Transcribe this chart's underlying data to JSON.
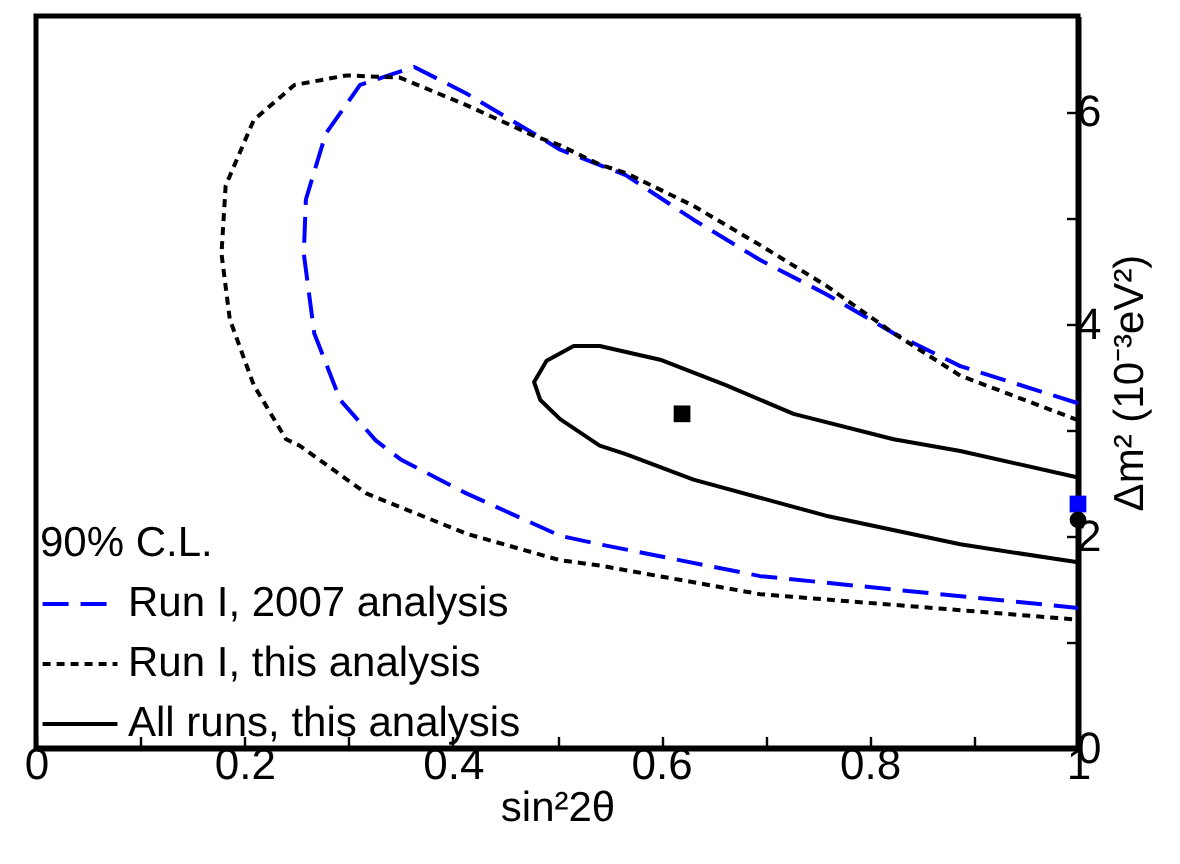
{
  "chart_data": {
    "type": "line",
    "xlabel": "sin²2θ",
    "ylabel": "Δm² (10⁻³eV²)",
    "legend_title": "90% C.L.",
    "legend": "bottom left",
    "grid": false,
    "xlim": [
      0,
      1
    ],
    "ylim": [
      0,
      6.9
    ],
    "xticks": [
      0,
      {
        "value": 0.1,
        "label": null
      },
      0.2,
      {
        "value": 0.3,
        "label": null
      },
      0.4,
      {
        "value": 0.5,
        "label": null
      },
      0.6,
      {
        "value": 0.7,
        "label": null
      },
      0.8,
      {
        "value": 0.9,
        "label": null
      },
      1
    ],
    "yticks": [
      0,
      {
        "value": 1,
        "label": null
      },
      2,
      {
        "value": 3,
        "label": null
      },
      4,
      {
        "value": 5,
        "label": null
      },
      6
    ],
    "series": [
      {
        "name": "Run I, 2007 analysis",
        "color": "#0000ff",
        "line_style": "dashed",
        "x": [
          1.0,
          0.887,
          0.823,
          0.758,
          0.695,
          0.631,
          0.566,
          0.503,
          0.478,
          0.413,
          0.363,
          0.311,
          0.278,
          0.259,
          0.257,
          0.267,
          0.292,
          0.326,
          0.35,
          0.413,
          0.503,
          0.541,
          0.695,
          1.0
        ],
        "values": [
          3.25,
          3.6,
          3.91,
          4.28,
          4.6,
          4.98,
          5.4,
          5.64,
          5.79,
          6.17,
          6.42,
          6.25,
          5.79,
          5.17,
          4.66,
          3.91,
          3.28,
          2.9,
          2.72,
          2.4,
          2.0,
          1.92,
          1.62,
          1.32
        ]
      },
      {
        "name": "Run I, this analysis",
        "color": "#000000",
        "line_style": "dotted",
        "x": [
          1.0,
          0.887,
          0.823,
          0.758,
          0.695,
          0.631,
          0.566,
          0.541,
          0.503,
          0.478,
          0.413,
          0.349,
          0.298,
          0.248,
          0.209,
          0.182,
          0.178,
          0.186,
          0.209,
          0.24,
          0.253,
          0.317,
          0.413,
          0.503,
          0.541,
          0.695,
          1.0
        ],
        "values": [
          3.09,
          3.51,
          3.91,
          4.36,
          4.74,
          5.11,
          5.42,
          5.5,
          5.68,
          5.77,
          6.06,
          6.32,
          6.34,
          6.25,
          5.92,
          5.3,
          4.66,
          4.04,
          3.42,
          2.91,
          2.85,
          2.4,
          2.02,
          1.77,
          1.72,
          1.45,
          1.21
        ]
      },
      {
        "name": "All runs, this analysis",
        "color": "#000000",
        "line_style": "solid",
        "x": [
          1.0,
          0.887,
          0.758,
          0.631,
          0.566,
          0.541,
          0.503,
          0.484,
          0.478,
          0.49,
          0.516,
          0.541,
          0.599,
          0.662,
          0.727,
          0.823,
          0.887,
          1.0
        ],
        "values": [
          1.75,
          1.92,
          2.19,
          2.53,
          2.77,
          2.85,
          3.1,
          3.28,
          3.45,
          3.65,
          3.79,
          3.79,
          3.66,
          3.42,
          3.15,
          2.91,
          2.8,
          2.55
        ]
      },
      {
        "type": "scatter",
        "color": "#000000",
        "marker": "square",
        "x": [
          0.62
        ],
        "values": [
          3.15
        ]
      },
      {
        "type": "scatter",
        "color": "#0000ff",
        "marker": "square",
        "x": [
          1.0
        ],
        "values": [
          2.3
        ]
      },
      {
        "type": "scatter",
        "color": "#000000",
        "marker": "circle",
        "x": [
          1.0
        ],
        "values": [
          2.15
        ]
      }
    ]
  }
}
